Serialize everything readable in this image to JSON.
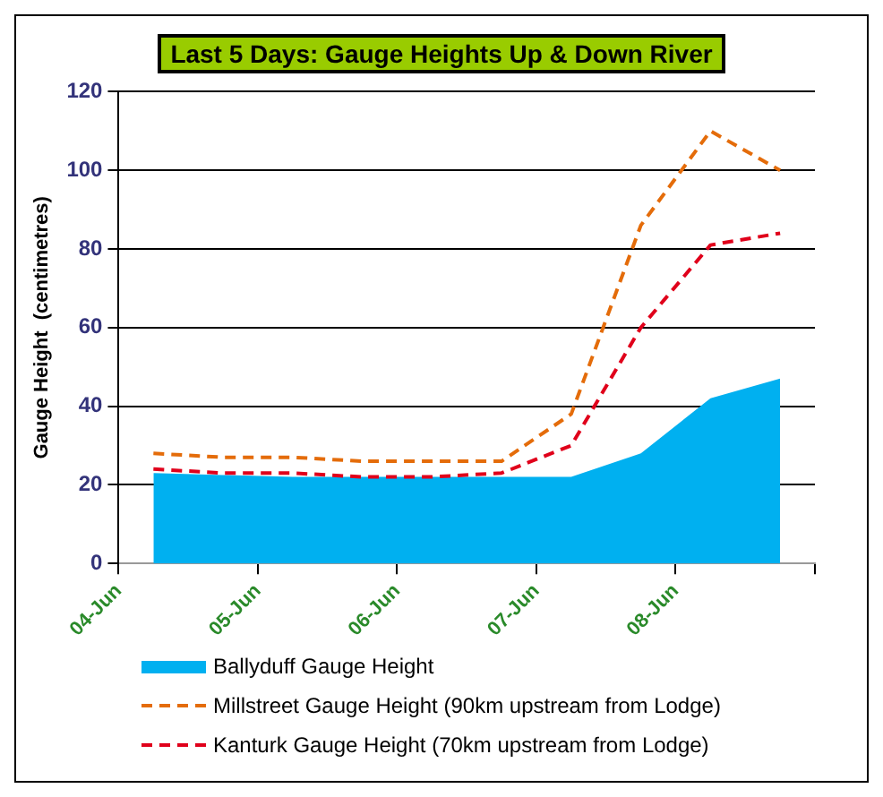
{
  "chart_data": {
    "type": "line",
    "title": "Last 5 Days: Gauge Heights Up & Down River",
    "ylabel": "Gauge Height  (centimetres)",
    "x": [
      "--06-04T06:00",
      "--06-04T18:00",
      "--06-05T06:00",
      "--06-05T18:00",
      "--06-06T06:00",
      "--06-06T18:00",
      "--06-07T06:00",
      "--06-07T18:00",
      "--06-08T06:00",
      "--06-08T18:00"
    ],
    "series": [
      {
        "name": "Ballyduff Gauge Height",
        "type": "area",
        "color": "#00b0f0",
        "values": [
          23,
          22.5,
          22,
          22,
          22,
          22,
          22,
          28,
          42,
          47
        ]
      },
      {
        "name": "Millstreet Gauge Height (90km upstream from Lodge)",
        "color": "#e46c0a",
        "line_style": "dashed",
        "values": [
          28,
          27,
          27,
          26,
          26,
          26,
          38,
          86,
          110,
          100
        ]
      },
      {
        "name": "Kanturk Gauge Height (70km upstream from Lodge)",
        "color": "#e0001b",
        "line_style": "dashed",
        "values": [
          24,
          23,
          23,
          22,
          22,
          23,
          30,
          60,
          81,
          84
        ]
      }
    ],
    "xlim": [
      "--06-04",
      "--06-09"
    ],
    "xticks": [
      {
        "value": "--06-04",
        "label": "04-Jun"
      },
      {
        "value": "--06-05",
        "label": "05-Jun"
      },
      {
        "value": "--06-06",
        "label": "06-Jun"
      },
      {
        "value": "--06-07",
        "label": "07-Jun"
      },
      {
        "value": "--06-08",
        "label": "08-Jun"
      },
      {
        "value": "--06-09",
        "label": null
      }
    ],
    "ylim": [
      0,
      120
    ],
    "yticks": [
      0,
      20,
      40,
      60,
      80,
      100,
      120
    ],
    "grid": "y",
    "legend": "bottom",
    "marker": "none"
  }
}
